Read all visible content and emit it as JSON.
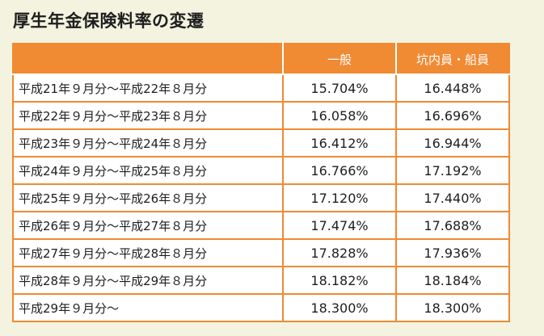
{
  "title": "厚生年金保険料率の変遷",
  "table": {
    "headers": [
      "",
      "一般",
      "坑内員・船員"
    ],
    "rows": [
      {
        "period": "平成21年９月分～平成22年８月分",
        "general": "15.704%",
        "miners_seafarers": "16.448%"
      },
      {
        "period": "平成22年９月分～平成23年８月分",
        "general": "16.058%",
        "miners_seafarers": "16.696%"
      },
      {
        "period": "平成23年９月分～平成24年８月分",
        "general": "16.412%",
        "miners_seafarers": "16.944%"
      },
      {
        "period": "平成24年９月分～平成25年８月分",
        "general": "16.766%",
        "miners_seafarers": "17.192%"
      },
      {
        "period": "平成25年９月分～平成26年８月分",
        "general": "17.120%",
        "miners_seafarers": "17.440%"
      },
      {
        "period": "平成26年９月分～平成27年８月分",
        "general": "17.474%",
        "miners_seafarers": "17.688%"
      },
      {
        "period": "平成27年９月分～平成28年８月分",
        "general": "17.828%",
        "miners_seafarers": "17.936%"
      },
      {
        "period": "平成28年９月分～平成29年８月分",
        "general": "18.182%",
        "miners_seafarers": "18.184%"
      },
      {
        "period": "平成29年９月分～",
        "general": "18.300%",
        "miners_seafarers": "18.300%"
      }
    ]
  },
  "colors": {
    "header_background": "#f08a33",
    "page_background": "#f3f3e0",
    "border": "#f08a33"
  }
}
